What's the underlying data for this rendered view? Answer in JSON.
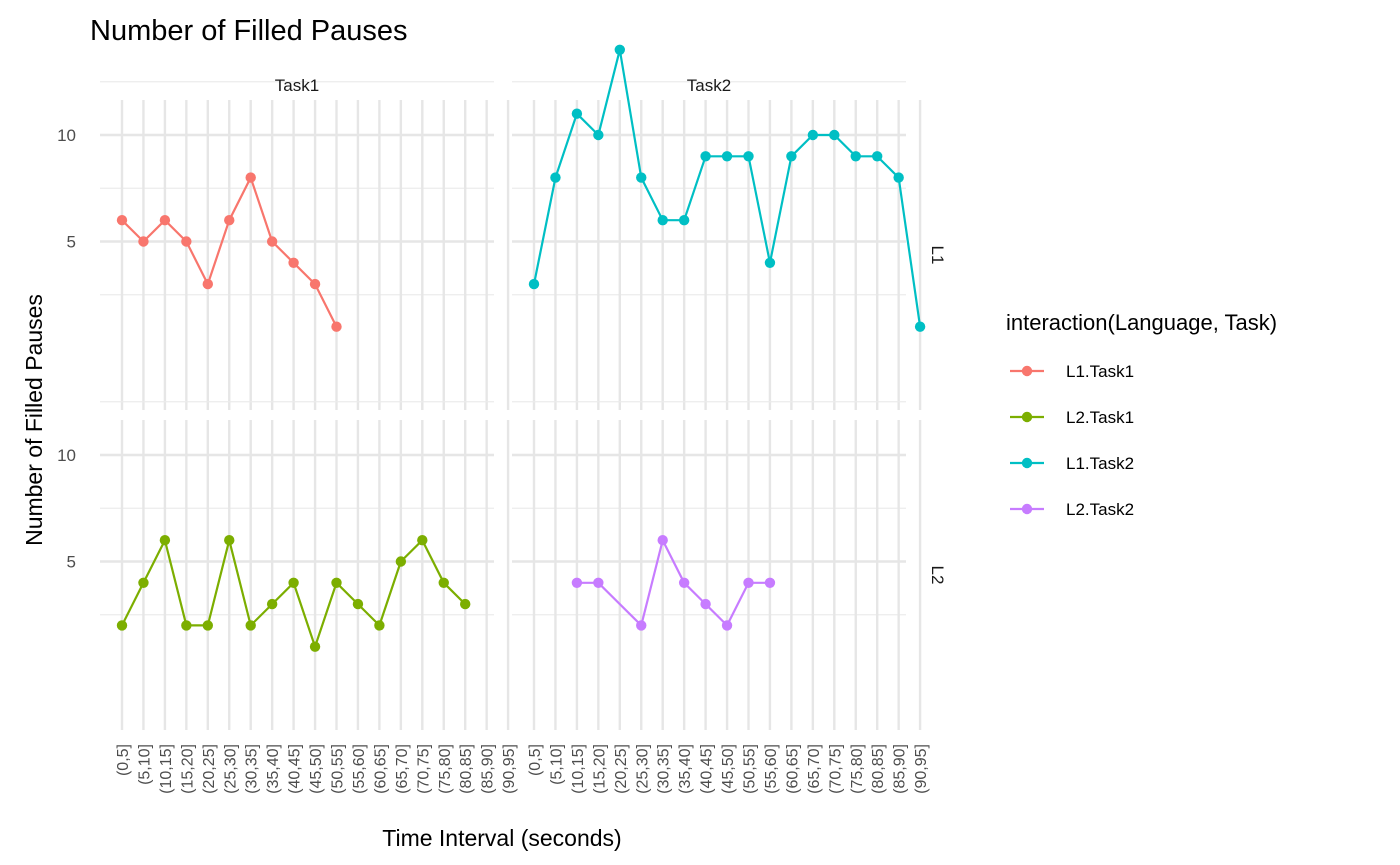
{
  "chart_data": {
    "type": "line",
    "title": "Number of Filled Pauses",
    "xlabel": "Time Interval (seconds)",
    "ylabel": "Number of Filled Pauses",
    "categories": [
      "(0,5]",
      "(5,10]",
      "(10,15]",
      "(15,20]",
      "(20,25]",
      "(25,30]",
      "(30,35]",
      "(35,40]",
      "(40,45]",
      "(45,50]",
      "(50,55]",
      "(55,60]",
      "(60,65]",
      "(65,70]",
      "(70,75]",
      "(75,80]",
      "(80,85]",
      "(85,90]",
      "(90,95]"
    ],
    "y_ticks": [
      5,
      10
    ],
    "ylim": [
      0,
      15
    ],
    "facet_cols": [
      "Task1",
      "Task2"
    ],
    "facet_rows": [
      "L1",
      "L2"
    ],
    "legend": {
      "title": "interaction(Language, Task)",
      "position": "right"
    },
    "grid": true,
    "series": [
      {
        "name": "L1.Task1",
        "language": "L1",
        "task": "Task1",
        "color": "#F8766D",
        "values": [
          6,
          5,
          6,
          5,
          3,
          6,
          8,
          5,
          4,
          3,
          1,
          null,
          null,
          null,
          null,
          null,
          null,
          null,
          null
        ]
      },
      {
        "name": "L2.Task1",
        "language": "L2",
        "task": "Task1",
        "color": "#7CAE00",
        "values": [
          2,
          4,
          6,
          2,
          2,
          6,
          2,
          3,
          4,
          1,
          4,
          3,
          2,
          5,
          6,
          4,
          3,
          null,
          null
        ]
      },
      {
        "name": "L1.Task2",
        "language": "L1",
        "task": "Task2",
        "color": "#00BFC4",
        "values": [
          3,
          8,
          11,
          10,
          14,
          8,
          6,
          6,
          9,
          9,
          9,
          4,
          9,
          10,
          10,
          9,
          9,
          8,
          1
        ]
      },
      {
        "name": "L2.Task2",
        "language": "L2",
        "task": "Task2",
        "color": "#C77CFF",
        "values": [
          null,
          null,
          4,
          4,
          null,
          2,
          6,
          4,
          3,
          2,
          4,
          4,
          null,
          null,
          null,
          null,
          null,
          null,
          null
        ]
      }
    ]
  }
}
